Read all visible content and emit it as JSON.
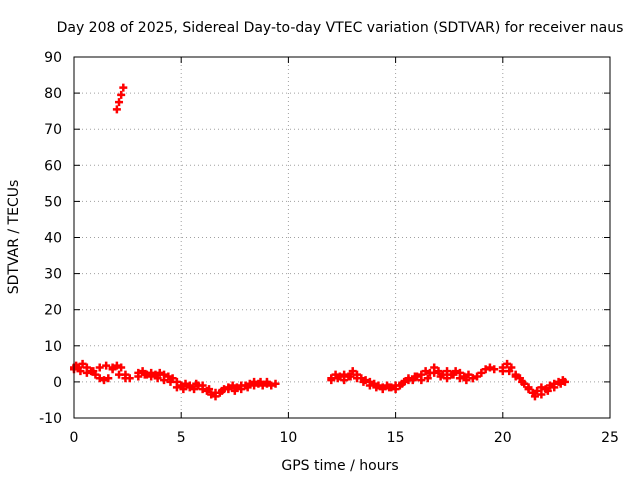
{
  "chart_data": {
    "type": "scatter",
    "title": "Day 208 of 2025, Sidereal Day-to-day VTEC variation (SDTVAR) for receiver naus",
    "xlabel": "GPS time / hours",
    "ylabel": "SDTVAR / TECUs",
    "xlim": [
      0,
      25
    ],
    "ylim": [
      -10,
      90
    ],
    "xticks": [
      0,
      5,
      10,
      15,
      20,
      25
    ],
    "yticks": [
      -10,
      0,
      10,
      20,
      30,
      40,
      50,
      60,
      70,
      80,
      90
    ],
    "grid": true,
    "marker": "+",
    "color": "#ff0000",
    "series": [
      {
        "name": "SDTVAR",
        "points": [
          [
            2.0,
            75.5
          ],
          [
            2.1,
            77.5
          ],
          [
            2.2,
            79.5
          ],
          [
            2.3,
            81.5
          ],
          [
            0.0,
            4.0
          ],
          [
            0.1,
            4.5
          ],
          [
            0.2,
            4.0
          ],
          [
            0.4,
            5.0
          ],
          [
            0.6,
            4.0
          ],
          [
            0.8,
            3.0
          ],
          [
            1.0,
            2.0
          ],
          [
            1.2,
            1.0
          ],
          [
            1.4,
            0.5
          ],
          [
            1.6,
            1.0
          ],
          [
            1.8,
            4.0
          ],
          [
            2.0,
            4.5
          ],
          [
            2.2,
            4.0
          ],
          [
            2.4,
            2.0
          ],
          [
            2.6,
            1.0
          ],
          [
            0.0,
            3.5
          ],
          [
            0.3,
            3.0
          ],
          [
            0.6,
            2.5
          ],
          [
            0.9,
            3.0
          ],
          [
            1.2,
            4.0
          ],
          [
            1.5,
            4.5
          ],
          [
            1.8,
            3.5
          ],
          [
            2.1,
            2.0
          ],
          [
            2.4,
            1.0
          ],
          [
            3.0,
            2.5
          ],
          [
            3.2,
            3.0
          ],
          [
            3.4,
            2.0
          ],
          [
            3.6,
            2.5
          ],
          [
            3.8,
            2.0
          ],
          [
            4.0,
            2.5
          ],
          [
            4.2,
            2.0
          ],
          [
            4.4,
            1.5
          ],
          [
            4.6,
            1.0
          ],
          [
            4.8,
            0.0
          ],
          [
            5.0,
            -1.0
          ],
          [
            5.2,
            -0.5
          ],
          [
            5.4,
            -1.5
          ],
          [
            5.6,
            -2.0
          ],
          [
            5.8,
            -1.0
          ],
          [
            6.0,
            -2.0
          ],
          [
            6.2,
            -2.5
          ],
          [
            6.4,
            -3.5
          ],
          [
            6.6,
            -4.0
          ],
          [
            6.8,
            -3.0
          ],
          [
            7.0,
            -2.0
          ],
          [
            7.2,
            -1.5
          ],
          [
            7.4,
            -1.0
          ],
          [
            7.6,
            -1.5
          ],
          [
            7.8,
            -1.0
          ],
          [
            8.0,
            -1.0
          ],
          [
            8.2,
            -0.5
          ],
          [
            8.4,
            0.0
          ],
          [
            8.6,
            -0.5
          ],
          [
            8.8,
            -1.0
          ],
          [
            9.0,
            -0.5
          ],
          [
            9.2,
            -1.0
          ],
          [
            9.4,
            -0.5
          ],
          [
            3.0,
            1.5
          ],
          [
            3.3,
            2.0
          ],
          [
            3.6,
            1.5
          ],
          [
            3.9,
            1.0
          ],
          [
            4.2,
            0.5
          ],
          [
            4.5,
            0.0
          ],
          [
            4.8,
            -1.5
          ],
          [
            5.1,
            -2.0
          ],
          [
            5.4,
            -1.0
          ],
          [
            5.7,
            -0.5
          ],
          [
            6.0,
            -1.0
          ],
          [
            6.3,
            -2.0
          ],
          [
            6.6,
            -3.0
          ],
          [
            6.9,
            -2.5
          ],
          [
            7.2,
            -2.0
          ],
          [
            7.5,
            -2.5
          ],
          [
            7.8,
            -2.0
          ],
          [
            8.1,
            -1.5
          ],
          [
            8.4,
            -1.0
          ],
          [
            8.7,
            0.0
          ],
          [
            9.0,
            0.0
          ],
          [
            12.0,
            1.0
          ],
          [
            12.2,
            2.0
          ],
          [
            12.4,
            1.5
          ],
          [
            12.6,
            2.0
          ],
          [
            12.8,
            1.5
          ],
          [
            13.0,
            3.0
          ],
          [
            13.2,
            2.0
          ],
          [
            13.4,
            1.0
          ],
          [
            13.6,
            0.5
          ],
          [
            13.8,
            0.0
          ],
          [
            14.0,
            -0.5
          ],
          [
            14.2,
            -1.0
          ],
          [
            14.4,
            -1.5
          ],
          [
            14.6,
            -1.0
          ],
          [
            14.8,
            -1.5
          ],
          [
            15.0,
            -2.0
          ],
          [
            15.2,
            -1.0
          ],
          [
            15.4,
            0.0
          ],
          [
            15.6,
            1.0
          ],
          [
            15.8,
            0.5
          ],
          [
            16.0,
            1.5
          ],
          [
            16.2,
            2.0
          ],
          [
            16.4,
            3.0
          ],
          [
            16.6,
            2.5
          ],
          [
            16.8,
            4.0
          ],
          [
            17.0,
            3.0
          ],
          [
            17.2,
            2.0
          ],
          [
            17.4,
            1.0
          ],
          [
            17.6,
            2.0
          ],
          [
            17.8,
            3.0
          ],
          [
            18.0,
            2.5
          ],
          [
            18.2,
            1.5
          ],
          [
            18.4,
            2.0
          ],
          [
            18.6,
            1.0
          ],
          [
            18.8,
            1.5
          ],
          [
            19.0,
            2.5
          ],
          [
            19.2,
            3.5
          ],
          [
            19.4,
            4.0
          ],
          [
            19.6,
            3.5
          ],
          [
            12.0,
            0.5
          ],
          [
            12.3,
            1.0
          ],
          [
            12.6,
            0.5
          ],
          [
            12.9,
            1.5
          ],
          [
            13.2,
            1.0
          ],
          [
            13.5,
            0.0
          ],
          [
            13.8,
            -1.0
          ],
          [
            14.1,
            -1.5
          ],
          [
            14.4,
            -2.0
          ],
          [
            14.7,
            -1.5
          ],
          [
            15.0,
            -1.0
          ],
          [
            15.3,
            -0.5
          ],
          [
            15.6,
            0.5
          ],
          [
            15.9,
            1.5
          ],
          [
            16.2,
            0.5
          ],
          [
            16.5,
            1.0
          ],
          [
            16.8,
            2.5
          ],
          [
            17.1,
            1.5
          ],
          [
            17.4,
            3.0
          ],
          [
            17.7,
            2.0
          ],
          [
            18.0,
            1.0
          ],
          [
            18.3,
            0.5
          ],
          [
            18.6,
            1.0
          ],
          [
            20.0,
            3.0
          ],
          [
            20.2,
            5.0
          ],
          [
            20.4,
            4.0
          ],
          [
            20.6,
            2.0
          ],
          [
            20.8,
            1.0
          ],
          [
            21.0,
            -0.5
          ],
          [
            21.2,
            -1.5
          ],
          [
            21.4,
            -3.0
          ],
          [
            21.6,
            -2.5
          ],
          [
            21.8,
            -1.5
          ],
          [
            22.0,
            -2.0
          ],
          [
            22.2,
            -1.0
          ],
          [
            22.4,
            -0.5
          ],
          [
            22.6,
            0.0
          ],
          [
            22.8,
            0.5
          ],
          [
            20.0,
            4.0
          ],
          [
            20.3,
            3.0
          ],
          [
            20.6,
            1.5
          ],
          [
            20.9,
            0.0
          ],
          [
            21.2,
            -2.0
          ],
          [
            21.5,
            -4.0
          ],
          [
            21.8,
            -3.5
          ],
          [
            22.1,
            -2.5
          ],
          [
            22.4,
            -1.5
          ],
          [
            22.7,
            -0.5
          ],
          [
            22.9,
            0.0
          ]
        ]
      }
    ]
  }
}
